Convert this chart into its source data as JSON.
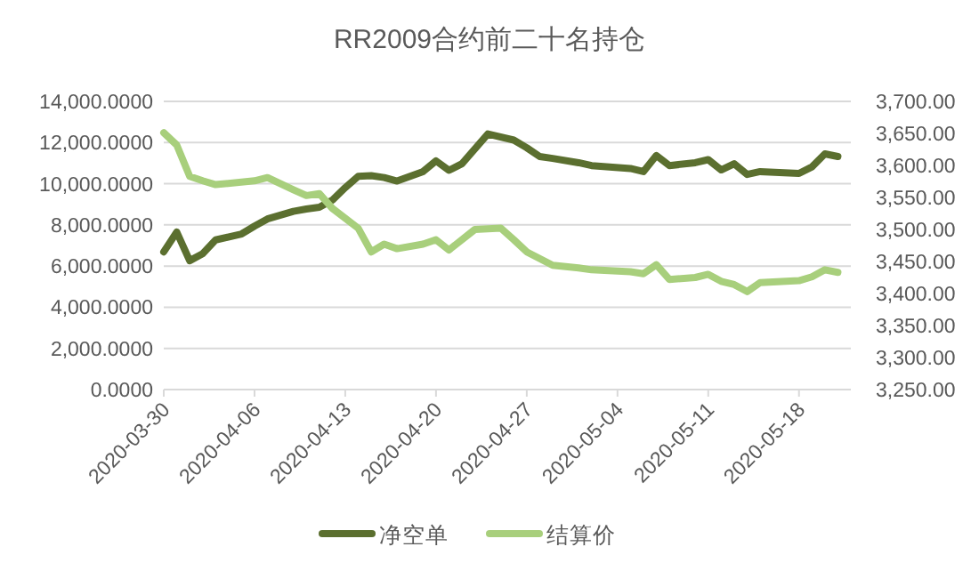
{
  "chart_data": {
    "type": "line",
    "title": "RR2009合约前二十名持仓",
    "xlim": [
      "2020-03-30",
      "2020-05-22"
    ],
    "xticks": [
      "2020-03-30",
      "2020-04-06",
      "2020-04-13",
      "2020-04-20",
      "2020-04-27",
      "2020-05-04",
      "2020-05-11",
      "2020-05-18"
    ],
    "ylim": [
      0,
      14000
    ],
    "yticks": [
      {
        "value": 0,
        "label": "0.0000"
      },
      {
        "value": 2000,
        "label": "2,000.0000"
      },
      {
        "value": 4000,
        "label": "4,000.0000"
      },
      {
        "value": 6000,
        "label": "6,000.0000"
      },
      {
        "value": 8000,
        "label": "8,000.0000"
      },
      {
        "value": 10000,
        "label": "10,000.0000"
      },
      {
        "value": 12000,
        "label": "12,000.0000"
      },
      {
        "value": 14000,
        "label": "14,000.0000"
      }
    ],
    "y2lim": [
      3250,
      3700
    ],
    "y2ticks": [
      {
        "value": 3250,
        "label": "3,250.00"
      },
      {
        "value": 3300,
        "label": "3,300.00"
      },
      {
        "value": 3350,
        "label": "3,350.00"
      },
      {
        "value": 3400,
        "label": "3,400.00"
      },
      {
        "value": 3450,
        "label": "3,450.00"
      },
      {
        "value": 3500,
        "label": "3,500.00"
      },
      {
        "value": 3550,
        "label": "3,550.00"
      },
      {
        "value": 3600,
        "label": "3,600.00"
      },
      {
        "value": 3650,
        "label": "3,650.00"
      },
      {
        "value": 3700,
        "label": "3,700.00"
      }
    ],
    "grid": "y",
    "legend": "bottom",
    "series": [
      {
        "name": "净空单",
        "color": "#5b6f2f",
        "x": [
          "2020-03-30",
          "2020-03-31",
          "2020-04-01",
          "2020-04-02",
          "2020-04-03",
          "2020-04-05",
          "2020-04-06",
          "2020-04-07",
          "2020-04-09",
          "2020-04-10",
          "2020-04-11",
          "2020-04-12",
          "2020-04-13",
          "2020-04-14",
          "2020-04-15",
          "2020-04-16",
          "2020-04-17",
          "2020-04-19",
          "2020-04-20",
          "2020-04-21",
          "2020-04-22",
          "2020-04-24",
          "2020-04-26",
          "2020-04-27",
          "2020-04-28",
          "2020-04-29",
          "2020-05-01",
          "2020-05-02",
          "2020-05-05",
          "2020-05-06",
          "2020-05-07",
          "2020-05-08",
          "2020-05-10",
          "2020-05-11",
          "2020-05-12",
          "2020-05-13",
          "2020-05-14",
          "2020-05-15",
          "2020-05-18",
          "2020-05-19",
          "2020-05-20",
          "2020-05-21"
        ],
        "values": [
          6690,
          7650,
          6260,
          6600,
          7270,
          7560,
          7940,
          8290,
          8660,
          8770,
          8860,
          9200,
          9810,
          10360,
          10390,
          10300,
          10130,
          10590,
          11110,
          10650,
          10970,
          12420,
          12120,
          11750,
          11320,
          11230,
          11020,
          10880,
          10740,
          10590,
          11370,
          10880,
          11020,
          11170,
          10670,
          10970,
          10450,
          10590,
          10500,
          10820,
          11450,
          11320
        ]
      },
      {
        "name": "结算价",
        "color": "#a8cf7c",
        "axis": "y2",
        "x": [
          "2020-03-30",
          "2020-03-31",
          "2020-04-01",
          "2020-04-02",
          "2020-04-03",
          "2020-04-06",
          "2020-04-07",
          "2020-04-09",
          "2020-04-10",
          "2020-04-11",
          "2020-04-12",
          "2020-04-14",
          "2020-04-15",
          "2020-04-16",
          "2020-04-17",
          "2020-04-19",
          "2020-04-20",
          "2020-04-21",
          "2020-04-23",
          "2020-04-25",
          "2020-04-26",
          "2020-04-27",
          "2020-04-29",
          "2020-05-01",
          "2020-05-02",
          "2020-05-05",
          "2020-05-06",
          "2020-05-07",
          "2020-05-08",
          "2020-05-10",
          "2020-05-11",
          "2020-05-12",
          "2020-05-13",
          "2020-05-14",
          "2020-05-15",
          "2020-05-18",
          "2020-05-19",
          "2020-05-20",
          "2020-05-21"
        ],
        "values": [
          3651,
          3632,
          3583,
          3576,
          3570,
          3576,
          3581,
          3562,
          3553,
          3556,
          3533,
          3502,
          3465,
          3477,
          3470,
          3477,
          3484,
          3468,
          3500,
          3502,
          3484,
          3465,
          3444,
          3440,
          3437,
          3434,
          3431,
          3445,
          3422,
          3425,
          3430,
          3419,
          3414,
          3403,
          3417,
          3420,
          3426,
          3437,
          3433
        ]
      }
    ]
  }
}
